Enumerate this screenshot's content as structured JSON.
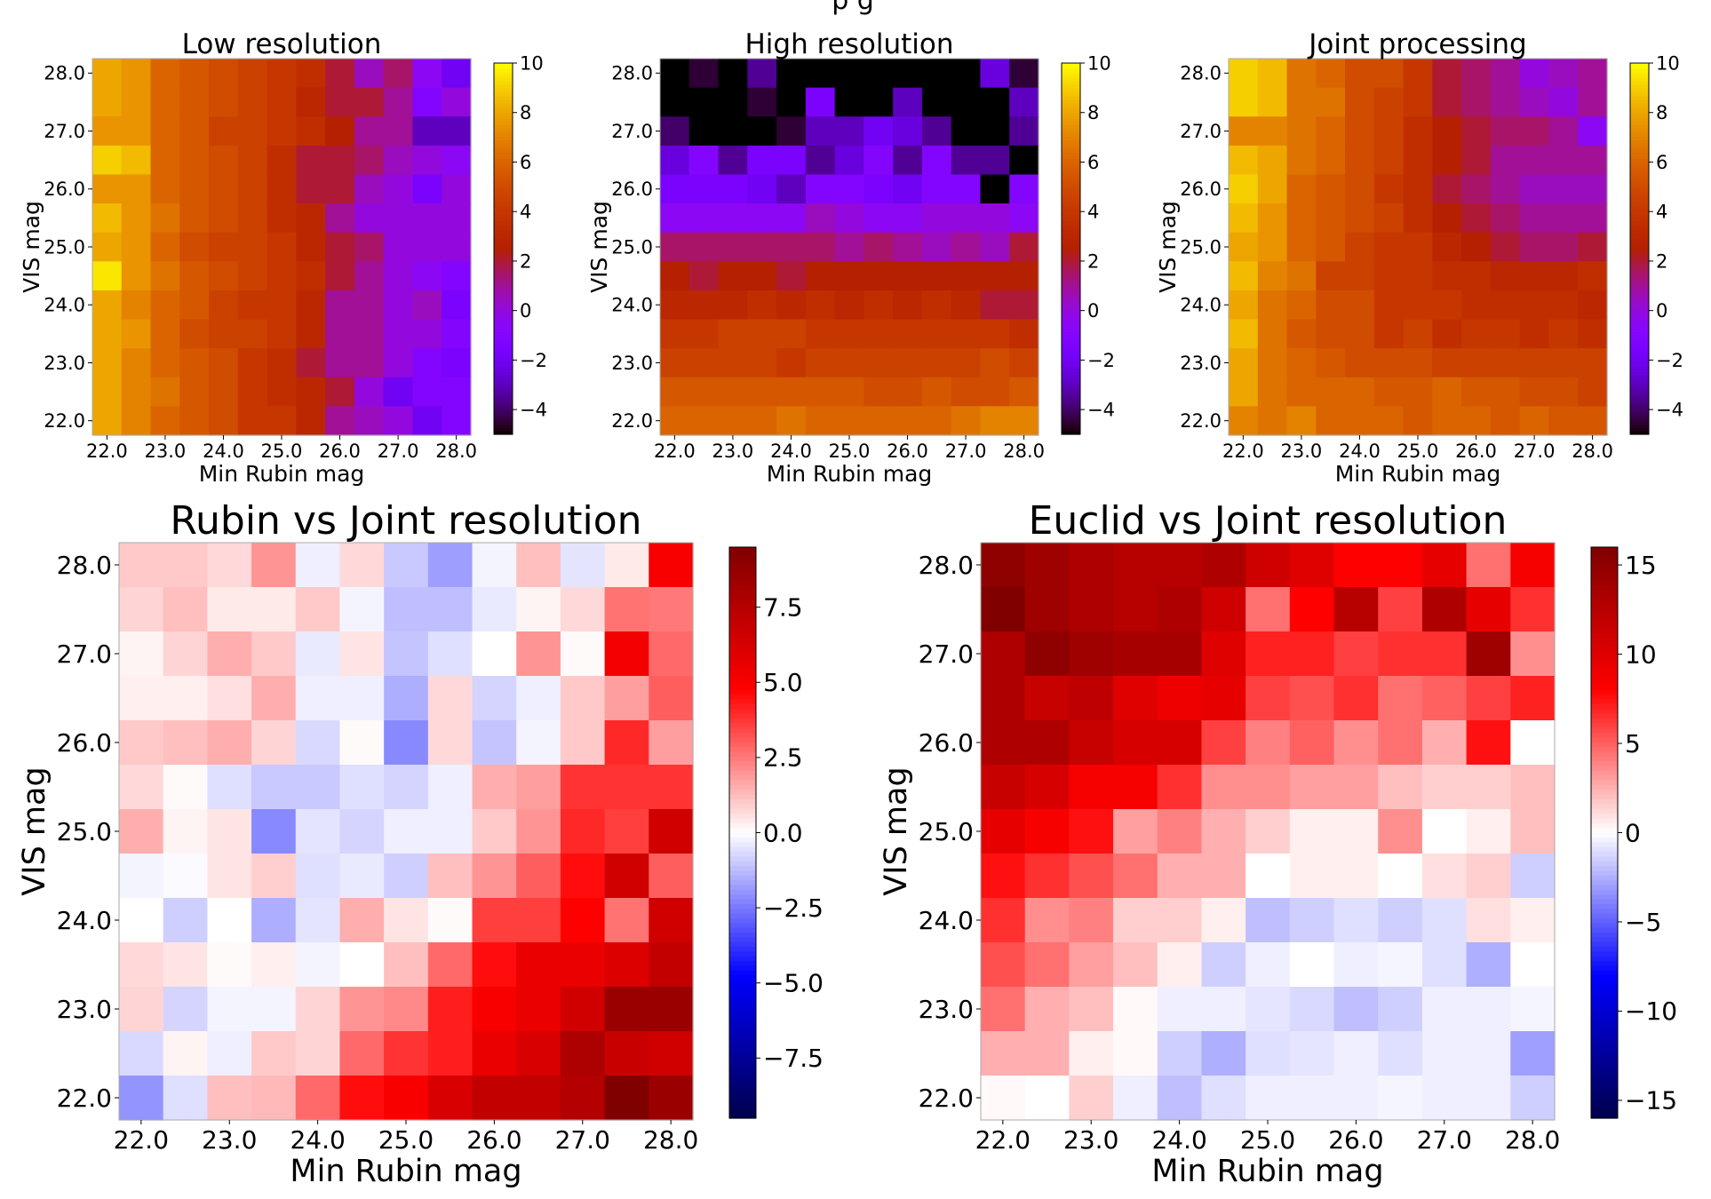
{
  "figure": {
    "top_title_fragment": "p        g"
  },
  "chart_data": [
    {
      "type": "heatmap",
      "title": "Low resolution",
      "xlabel": "Min Rubin mag",
      "ylabel": "VIS mag",
      "x_ticks": [
        "22.0",
        "23.0",
        "24.0",
        "25.0",
        "26.0",
        "27.0",
        "28.0"
      ],
      "y_ticks": [
        "22.0",
        "23.0",
        "24.0",
        "25.0",
        "26.0",
        "27.0",
        "28.0"
      ],
      "x_range": [
        22.0,
        28.0
      ],
      "y_range": [
        22.0,
        28.0
      ],
      "colormap": "gnuplot",
      "vmin": -5,
      "vmax": 10,
      "cbar_ticks": [
        "10",
        "8",
        "6",
        "4",
        "2",
        "0",
        "−2",
        "−4"
      ],
      "cbar_values": [
        10,
        8,
        6,
        4,
        2,
        0,
        -2,
        -4
      ],
      "values_top_to_bottom": [
        [
          8.0,
          7.5,
          6.0,
          5.5,
          5.0,
          4.5,
          4.0,
          3.5,
          2.0,
          0.5,
          1.5,
          -0.5,
          -2.0
        ],
        [
          8.0,
          7.5,
          6.0,
          5.5,
          5.0,
          4.5,
          4.0,
          3.0,
          2.0,
          2.0,
          1.0,
          -1.0,
          0.0
        ],
        [
          7.5,
          7.5,
          6.0,
          5.5,
          4.5,
          4.5,
          4.0,
          3.5,
          2.5,
          1.0,
          1.0,
          -3.0,
          -3.0
        ],
        [
          9.0,
          8.5,
          6.0,
          5.5,
          5.0,
          4.5,
          3.5,
          2.0,
          2.0,
          1.5,
          0.5,
          0.0,
          -0.5
        ],
        [
          7.5,
          7.5,
          6.0,
          5.5,
          5.0,
          4.5,
          3.5,
          2.0,
          2.0,
          0.5,
          0.0,
          -1.5,
          0.0
        ],
        [
          8.5,
          7.5,
          6.5,
          5.5,
          5.0,
          4.5,
          3.5,
          3.0,
          1.0,
          0.0,
          0.0,
          0.0,
          0.0
        ],
        [
          8.0,
          7.5,
          6.0,
          5.0,
          4.5,
          4.5,
          4.0,
          3.0,
          2.0,
          1.5,
          0.0,
          0.0,
          0.0
        ],
        [
          9.5,
          7.5,
          6.5,
          5.5,
          5.0,
          4.5,
          4.0,
          3.5,
          2.0,
          1.0,
          0.0,
          -0.5,
          -1.0
        ],
        [
          8.0,
          7.0,
          6.0,
          5.5,
          4.5,
          4.0,
          4.0,
          3.0,
          1.0,
          1.0,
          0.0,
          0.5,
          -1.5
        ],
        [
          8.0,
          7.5,
          6.0,
          5.0,
          4.5,
          4.5,
          4.0,
          3.0,
          1.0,
          1.0,
          0.0,
          0.0,
          -1.0
        ],
        [
          8.0,
          7.0,
          6.0,
          5.5,
          5.0,
          4.0,
          3.5,
          2.0,
          1.0,
          1.0,
          0.0,
          -1.0,
          -1.5
        ],
        [
          8.0,
          7.0,
          6.5,
          5.5,
          5.0,
          4.0,
          3.5,
          3.0,
          2.0,
          0.0,
          -2.0,
          -1.0,
          -1.0
        ],
        [
          8.0,
          7.0,
          6.0,
          5.5,
          5.0,
          4.0,
          4.0,
          3.0,
          1.0,
          0.5,
          0.0,
          -2.0,
          -1.0
        ]
      ]
    },
    {
      "type": "heatmap",
      "title": "High resolution",
      "xlabel": "Min Rubin mag",
      "ylabel": "VIS mag",
      "x_ticks": [
        "22.0",
        "23.0",
        "24.0",
        "25.0",
        "26.0",
        "27.0",
        "28.0"
      ],
      "y_ticks": [
        "22.0",
        "23.0",
        "24.0",
        "25.0",
        "26.0",
        "27.0",
        "28.0"
      ],
      "x_range": [
        22.0,
        28.0
      ],
      "y_range": [
        22.0,
        28.0
      ],
      "colormap": "gnuplot",
      "vmin": -5,
      "vmax": 10,
      "cbar_ticks": [
        "10",
        "8",
        "6",
        "4",
        "2",
        "0",
        "−2",
        "−4"
      ],
      "cbar_values": [
        10,
        8,
        6,
        4,
        2,
        0,
        -2,
        -4
      ],
      "values_top_to_bottom": [
        [
          -5.0,
          -4.5,
          -5.0,
          -3.5,
          -5.0,
          -5.0,
          -5.0,
          -5.0,
          -5.0,
          -5.0,
          -5.0,
          -2.5,
          -4.5
        ],
        [
          -5.0,
          -5.0,
          -5.0,
          -4.5,
          -5.0,
          -1.5,
          -5.0,
          -5.0,
          -3.0,
          -5.0,
          -5.0,
          -5.0,
          -3.0
        ],
        [
          -4.0,
          -5.0,
          -5.0,
          -5.0,
          -4.5,
          -3.0,
          -3.0,
          -2.0,
          -2.5,
          -3.5,
          -5.0,
          -5.0,
          -3.5
        ],
        [
          -2.5,
          -1.0,
          -3.5,
          -1.5,
          -1.5,
          -3.5,
          -2.5,
          -1.0,
          -3.5,
          -1.0,
          -3.5,
          -3.5,
          -5.0
        ],
        [
          -1.5,
          -1.5,
          -1.5,
          -2.0,
          -3.0,
          -1.0,
          -1.0,
          -1.5,
          -2.0,
          -1.0,
          -1.0,
          -5.0,
          -1.0
        ],
        [
          -0.5,
          -0.5,
          -0.5,
          -0.5,
          -0.5,
          0.5,
          0.0,
          -0.5,
          -0.5,
          0.0,
          0.0,
          0.0,
          -0.5
        ],
        [
          1.5,
          1.5,
          1.5,
          1.5,
          1.5,
          1.5,
          1.0,
          1.5,
          1.0,
          0.5,
          1.0,
          0.5,
          2.0
        ],
        [
          2.5,
          2.0,
          2.5,
          2.5,
          2.0,
          2.5,
          2.5,
          2.5,
          2.5,
          2.5,
          2.5,
          2.5,
          2.5
        ],
        [
          3.0,
          3.0,
          3.0,
          3.5,
          3.0,
          3.5,
          3.0,
          3.5,
          3.0,
          3.5,
          3.0,
          2.0,
          2.0
        ],
        [
          4.0,
          4.0,
          4.5,
          4.5,
          4.5,
          4.0,
          4.0,
          4.0,
          4.0,
          4.0,
          4.0,
          4.0,
          3.5
        ],
        [
          4.5,
          4.5,
          4.5,
          4.5,
          4.0,
          4.5,
          4.5,
          4.5,
          4.5,
          4.5,
          4.5,
          5.0,
          4.5
        ],
        [
          5.5,
          5.5,
          5.5,
          5.5,
          5.5,
          5.5,
          5.5,
          5.0,
          5.0,
          5.5,
          5.0,
          5.0,
          5.5
        ],
        [
          6.0,
          6.0,
          6.0,
          6.0,
          6.5,
          6.0,
          6.0,
          6.0,
          6.0,
          6.0,
          6.5,
          7.0,
          7.0
        ]
      ]
    },
    {
      "type": "heatmap",
      "title": "Joint processing",
      "xlabel": "Min Rubin mag",
      "ylabel": "VIS mag",
      "x_ticks": [
        "22.0",
        "23.0",
        "24.0",
        "25.0",
        "26.0",
        "27.0",
        "28.0"
      ],
      "y_ticks": [
        "22.0",
        "23.0",
        "24.0",
        "25.0",
        "26.0",
        "27.0",
        "28.0"
      ],
      "x_range": [
        22.0,
        28.0
      ],
      "y_range": [
        22.0,
        28.0
      ],
      "colormap": "gnuplot",
      "vmin": -5,
      "vmax": 10,
      "cbar_ticks": [
        "10",
        "8",
        "6",
        "4",
        "2",
        "0",
        "−2",
        "−4"
      ],
      "cbar_values": [
        10,
        8,
        6,
        4,
        2,
        0,
        -2,
        -4
      ],
      "values_top_to_bottom": [
        [
          9.0,
          8.5,
          6.5,
          6.0,
          5.0,
          5.0,
          4.0,
          2.0,
          1.5,
          1.0,
          0.0,
          0.5,
          1.0
        ],
        [
          9.0,
          8.5,
          6.5,
          6.5,
          5.0,
          4.5,
          4.0,
          2.0,
          1.5,
          1.0,
          0.5,
          0.0,
          1.0
        ],
        [
          7.0,
          7.0,
          6.5,
          6.0,
          5.0,
          4.5,
          3.5,
          2.5,
          2.0,
          1.5,
          1.5,
          1.0,
          -0.5
        ],
        [
          8.5,
          8.0,
          6.5,
          6.0,
          5.0,
          4.5,
          3.5,
          2.5,
          2.0,
          1.0,
          1.0,
          1.0,
          1.0
        ],
        [
          9.0,
          8.0,
          6.0,
          5.5,
          5.0,
          4.0,
          3.5,
          2.0,
          1.5,
          1.0,
          0.5,
          0.5,
          0.5
        ],
        [
          8.5,
          7.5,
          6.0,
          5.5,
          5.0,
          4.5,
          3.5,
          2.5,
          2.0,
          1.5,
          1.0,
          1.0,
          1.0
        ],
        [
          8.0,
          7.5,
          6.0,
          5.5,
          4.5,
          4.0,
          4.0,
          3.0,
          2.5,
          2.0,
          1.5,
          1.5,
          2.0
        ],
        [
          8.5,
          7.0,
          6.5,
          4.5,
          4.5,
          4.0,
          4.0,
          3.5,
          3.5,
          3.0,
          3.0,
          3.0,
          3.5
        ],
        [
          8.0,
          6.5,
          6.0,
          5.0,
          5.0,
          4.0,
          4.0,
          4.0,
          3.5,
          3.5,
          3.5,
          3.5,
          3.0
        ],
        [
          8.5,
          6.5,
          5.5,
          5.0,
          5.0,
          4.0,
          4.5,
          3.5,
          4.0,
          4.0,
          3.5,
          4.0,
          3.5
        ],
        [
          8.0,
          6.5,
          6.0,
          5.5,
          5.0,
          5.0,
          5.0,
          4.5,
          4.5,
          4.5,
          4.5,
          4.5,
          4.5
        ],
        [
          8.0,
          6.5,
          6.0,
          6.0,
          6.0,
          5.5,
          5.5,
          6.0,
          5.5,
          5.5,
          5.0,
          5.0,
          4.5
        ],
        [
          7.0,
          6.5,
          7.0,
          6.0,
          6.0,
          6.0,
          5.5,
          6.0,
          6.0,
          5.5,
          6.0,
          5.5,
          5.5
        ]
      ]
    },
    {
      "type": "heatmap",
      "title": "Rubin vs Joint resolution",
      "xlabel": "Min Rubin mag",
      "ylabel": "VIS mag",
      "x_ticks": [
        "22.0",
        "23.0",
        "24.0",
        "25.0",
        "26.0",
        "27.0",
        "28.0"
      ],
      "y_ticks": [
        "22.0",
        "23.0",
        "24.0",
        "25.0",
        "26.0",
        "27.0",
        "28.0"
      ],
      "x_range": [
        22.0,
        28.0
      ],
      "y_range": [
        22.0,
        28.0
      ],
      "colormap": "seismic",
      "vmin": -9.5,
      "vmax": 9.5,
      "cbar_ticks": [
        "7.5",
        "5.0",
        "2.5",
        "0.0",
        "−2.5",
        "−5.0",
        "−7.5"
      ],
      "cbar_values": [
        7.5,
        5.0,
        2.5,
        0.0,
        -2.5,
        -5.0,
        -7.5
      ],
      "values_top_to_bottom": [
        [
          1.0,
          1.0,
          0.7,
          2.0,
          -0.3,
          0.7,
          -1.0,
          -1.8,
          -0.2,
          1.2,
          -0.5,
          0.4,
          5.0
        ],
        [
          0.8,
          1.2,
          0.4,
          0.4,
          1.0,
          -0.2,
          -1.2,
          -1.2,
          -0.4,
          0.2,
          0.7,
          2.6,
          2.5
        ],
        [
          0.2,
          0.8,
          1.5,
          1.0,
          -0.4,
          0.5,
          -1.1,
          -0.6,
          0.0,
          2.0,
          0.1,
          5.2,
          2.8
        ],
        [
          0.3,
          0.3,
          0.6,
          1.5,
          -0.3,
          -0.3,
          -1.5,
          0.7,
          -0.8,
          -0.3,
          1.0,
          1.8,
          3.0
        ],
        [
          1.0,
          1.2,
          1.5,
          0.8,
          -0.7,
          0.1,
          -2.2,
          0.7,
          -1.1,
          -0.2,
          1.0,
          4.0,
          1.8
        ],
        [
          0.7,
          0.1,
          -0.6,
          -1.0,
          -1.0,
          -0.6,
          -0.8,
          -0.3,
          1.5,
          1.8,
          3.8,
          3.8,
          3.8
        ],
        [
          1.5,
          0.2,
          0.5,
          -2.2,
          -0.5,
          -0.8,
          -0.3,
          -0.3,
          1.0,
          2.0,
          4.0,
          3.6,
          6.5
        ],
        [
          -0.2,
          -0.1,
          0.5,
          0.9,
          -0.6,
          -0.4,
          -0.9,
          1.2,
          2.0,
          3.0,
          4.5,
          6.5,
          3.0
        ],
        [
          0.0,
          -0.9,
          0.0,
          -1.5,
          -0.5,
          1.5,
          0.5,
          0.1,
          3.6,
          3.6,
          4.8,
          2.6,
          6.5
        ],
        [
          0.7,
          0.5,
          0.1,
          0.3,
          -0.2,
          0.0,
          1.2,
          2.8,
          4.5,
          5.5,
          5.5,
          6.0,
          7.0
        ],
        [
          0.8,
          -0.8,
          -0.2,
          -0.2,
          0.8,
          2.0,
          2.2,
          4.2,
          5.0,
          5.5,
          6.5,
          8.5,
          8.5
        ],
        [
          -0.7,
          0.2,
          -0.3,
          1.0,
          0.8,
          2.8,
          3.8,
          4.2,
          5.5,
          6.2,
          7.8,
          6.8,
          6.5
        ],
        [
          -2.0,
          -0.6,
          1.2,
          1.3,
          2.8,
          4.5,
          5.0,
          6.2,
          7.0,
          7.0,
          7.5,
          9.5,
          8.5
        ]
      ]
    },
    {
      "type": "heatmap",
      "title": "Euclid vs Joint resolution",
      "xlabel": "Min Rubin mag",
      "ylabel": "VIS mag",
      "x_ticks": [
        "22.0",
        "23.0",
        "24.0",
        "25.0",
        "26.0",
        "27.0",
        "28.0"
      ],
      "y_ticks": [
        "22.0",
        "23.0",
        "24.0",
        "25.0",
        "26.0",
        "27.0",
        "28.0"
      ],
      "x_range": [
        22.0,
        28.0
      ],
      "y_range": [
        22.0,
        28.0
      ],
      "colormap": "seismic",
      "vmin": -16,
      "vmax": 16,
      "cbar_ticks": [
        "15",
        "10",
        "5",
        "0",
        "−5",
        "−10",
        "−15"
      ],
      "cbar_values": [
        15,
        10,
        5,
        0,
        -5,
        -10,
        -15
      ],
      "values_top_to_bottom": [
        [
          15.0,
          14.0,
          13.0,
          12.5,
          12.5,
          13.0,
          11.0,
          10.0,
          8.0,
          8.0,
          9.5,
          4.5,
          8.5
        ],
        [
          16.0,
          14.0,
          13.0,
          12.5,
          13.0,
          11.0,
          4.5,
          8.0,
          12.5,
          6.0,
          13.0,
          9.5,
          6.5
        ],
        [
          13.0,
          15.0,
          14.0,
          13.5,
          13.5,
          10.0,
          7.0,
          7.0,
          6.0,
          6.5,
          6.5,
          14.0,
          3.5
        ],
        [
          13.0,
          11.5,
          12.0,
          10.0,
          9.0,
          9.5,
          6.0,
          5.5,
          6.5,
          4.5,
          5.0,
          6.0,
          7.0
        ],
        [
          13.0,
          13.0,
          11.5,
          10.5,
          10.5,
          6.0,
          4.0,
          5.0,
          3.5,
          4.5,
          2.5,
          7.5,
          0.0
        ],
        [
          11.5,
          10.5,
          8.5,
          8.5,
          6.5,
          3.5,
          3.5,
          3.0,
          3.0,
          2.0,
          1.5,
          1.5,
          2.0
        ],
        [
          9.5,
          8.5,
          7.5,
          3.0,
          4.0,
          2.5,
          1.5,
          0.5,
          0.5,
          3.5,
          0.0,
          0.5,
          2.0
        ],
        [
          7.5,
          6.5,
          5.5,
          4.5,
          2.5,
          2.5,
          0.0,
          0.5,
          0.5,
          0.0,
          1.0,
          1.5,
          -1.5
        ],
        [
          6.5,
          3.5,
          4.0,
          1.5,
          1.5,
          0.5,
          -2.0,
          -1.5,
          -1.0,
          -1.5,
          -1.0,
          1.0,
          0.5
        ],
        [
          5.5,
          4.5,
          3.0,
          2.0,
          0.5,
          -1.5,
          -0.5,
          0.0,
          -0.5,
          -0.3,
          -1.0,
          -2.5,
          0.0
        ],
        [
          4.5,
          2.5,
          2.0,
          0.2,
          -0.5,
          -0.5,
          -0.8,
          -1.2,
          -2.0,
          -1.5,
          -0.5,
          -0.5,
          -0.3
        ],
        [
          2.5,
          2.5,
          0.5,
          0.2,
          -1.5,
          -2.5,
          -1.0,
          -0.8,
          -0.5,
          -1.0,
          -0.5,
          -0.5,
          -3.0
        ],
        [
          0.2,
          0.0,
          1.5,
          -0.5,
          -2.0,
          -1.0,
          -0.5,
          -0.5,
          -0.5,
          -0.3,
          -0.5,
          -0.5,
          -1.5
        ]
      ]
    }
  ]
}
